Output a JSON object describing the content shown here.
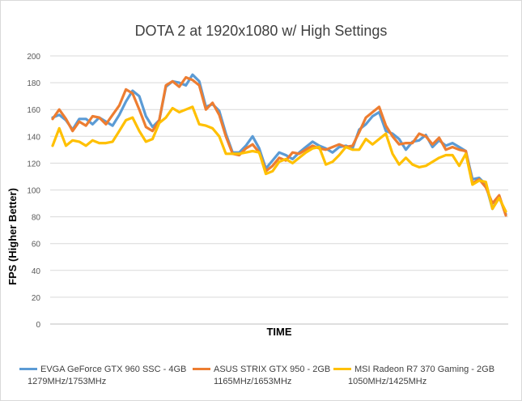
{
  "chart_data": {
    "type": "line",
    "title": "DOTA 2 at 1920x1080 w/ High Settings",
    "xlabel": "TIME",
    "ylabel": "FPS (Higher Better)",
    "ylim": [
      0,
      200
    ],
    "yticks": [
      0,
      20,
      40,
      60,
      80,
      100,
      120,
      140,
      160,
      180,
      200
    ],
    "grid": true,
    "legend_position": "bottom",
    "series": [
      {
        "name": "EVGA GeForce GTX 960 SSC - 4GB",
        "sublabel": "1279MHz/1753MHz",
        "color": "#5b9bd5",
        "values": [
          154,
          156,
          152,
          145,
          153,
          153,
          149,
          154,
          151,
          148,
          156,
          166,
          174,
          170,
          155,
          147,
          152,
          177,
          181,
          180,
          178,
          186,
          181,
          162,
          164,
          159,
          142,
          128,
          128,
          133,
          140,
          131,
          116,
          122,
          128,
          126,
          123,
          128,
          132,
          136,
          133,
          131,
          128,
          132,
          133,
          131,
          145,
          149,
          155,
          158,
          144,
          142,
          138,
          130,
          136,
          137,
          141,
          132,
          137,
          133,
          135,
          132,
          129,
          108,
          109,
          104,
          86,
          95,
          82
        ]
      },
      {
        "name": "ASUS STRIX GTX 950 - 2GB",
        "sublabel": "1165MHz/1653MHz",
        "color": "#ed7d31",
        "values": [
          153,
          160,
          153,
          144,
          151,
          148,
          155,
          154,
          149,
          156,
          163,
          175,
          172,
          160,
          147,
          144,
          152,
          178,
          181,
          177,
          184,
          182,
          178,
          160,
          165,
          156,
          140,
          127,
          126,
          131,
          134,
          128,
          114,
          118,
          124,
          122,
          128,
          127,
          130,
          133,
          131,
          130,
          132,
          134,
          132,
          133,
          143,
          154,
          158,
          162,
          148,
          140,
          134,
          135,
          135,
          142,
          140,
          134,
          139,
          130,
          132,
          130,
          129,
          105,
          108,
          102,
          90,
          96,
          81
        ]
      },
      {
        "name": "MSI Radeon R7 370 Gaming - 2GB",
        "sublabel": "1050MHz/1425MHz",
        "color": "#ffc000",
        "values": [
          133,
          146,
          133,
          137,
          136,
          133,
          137,
          135,
          135,
          136,
          144,
          152,
          154,
          144,
          136,
          138,
          150,
          154,
          161,
          158,
          160,
          162,
          149,
          148,
          146,
          140,
          127,
          127,
          127,
          128,
          129,
          128,
          112,
          114,
          121,
          123,
          120,
          124,
          128,
          131,
          132,
          119,
          121,
          126,
          132,
          130,
          130,
          138,
          134,
          138,
          142,
          127,
          119,
          124,
          119,
          117,
          118,
          121,
          124,
          126,
          126,
          118,
          127,
          104,
          107,
          106,
          86,
          94,
          84
        ]
      }
    ]
  }
}
